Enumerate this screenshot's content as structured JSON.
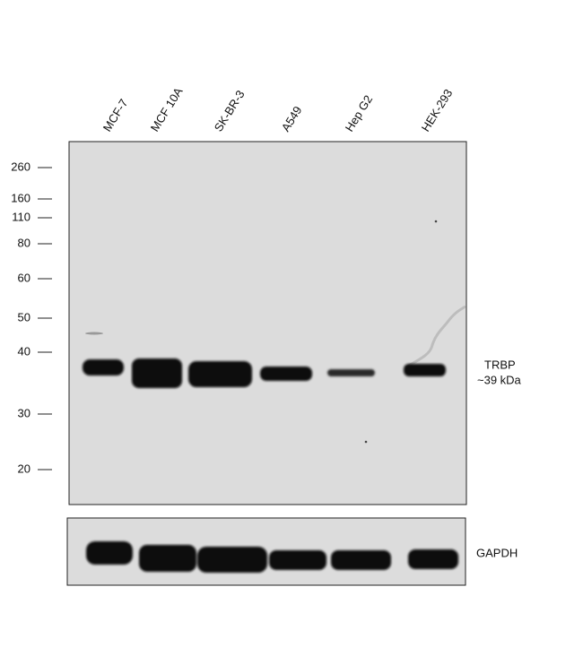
{
  "lanes": [
    "MCF-7",
    "MCF 10A",
    "SK-BR-3",
    "A549",
    "Hep G2",
    "HEK-293"
  ],
  "markers": [
    260,
    160,
    110,
    80,
    60,
    50,
    40,
    30,
    20
  ],
  "band_labels": {
    "target": "TRBP",
    "size": "~39 kDa",
    "loading_control": "GAPDH"
  }
}
